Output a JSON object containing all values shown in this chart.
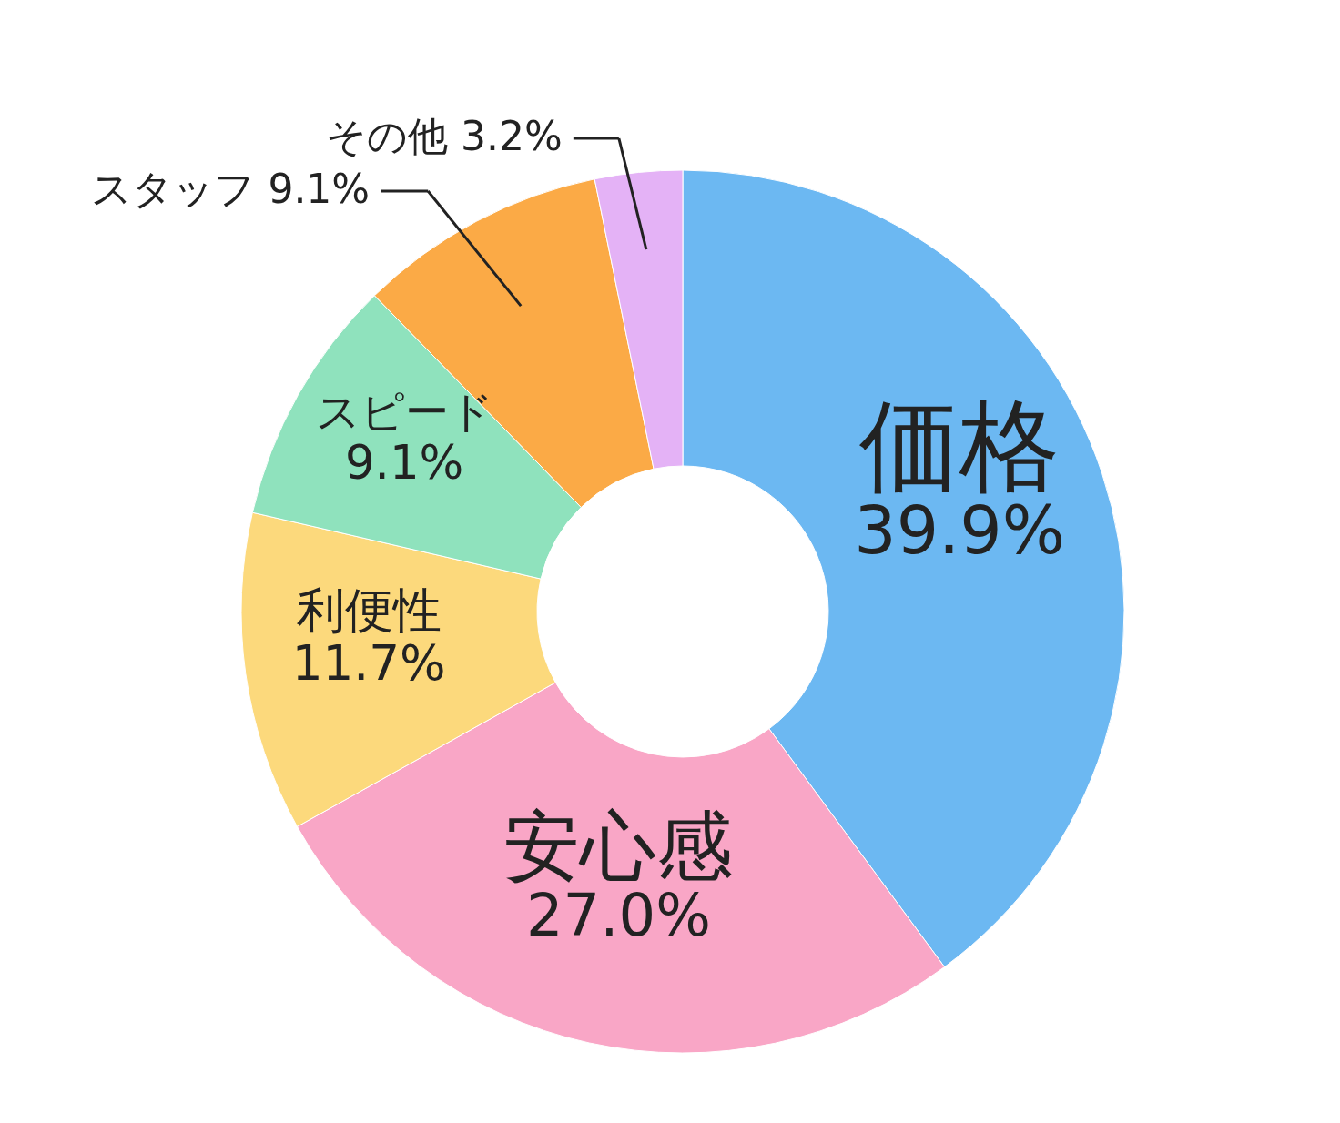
{
  "chart_data": {
    "type": "donut",
    "categories": [
      "価格",
      "安心感",
      "利便性",
      "スピード",
      "スタッフ",
      "その他"
    ],
    "values": [
      39.9,
      27.0,
      11.7,
      9.1,
      9.1,
      3.2
    ],
    "colors": [
      "#6cb8f2",
      "#f9a6c6",
      "#fcd97c",
      "#8fe2bd",
      "#fbaa46",
      "#e4b2f6"
    ],
    "value_labels": [
      "39.9%",
      "27.0%",
      "11.7%",
      "9.1%",
      "9.1%",
      "3.2%"
    ]
  }
}
